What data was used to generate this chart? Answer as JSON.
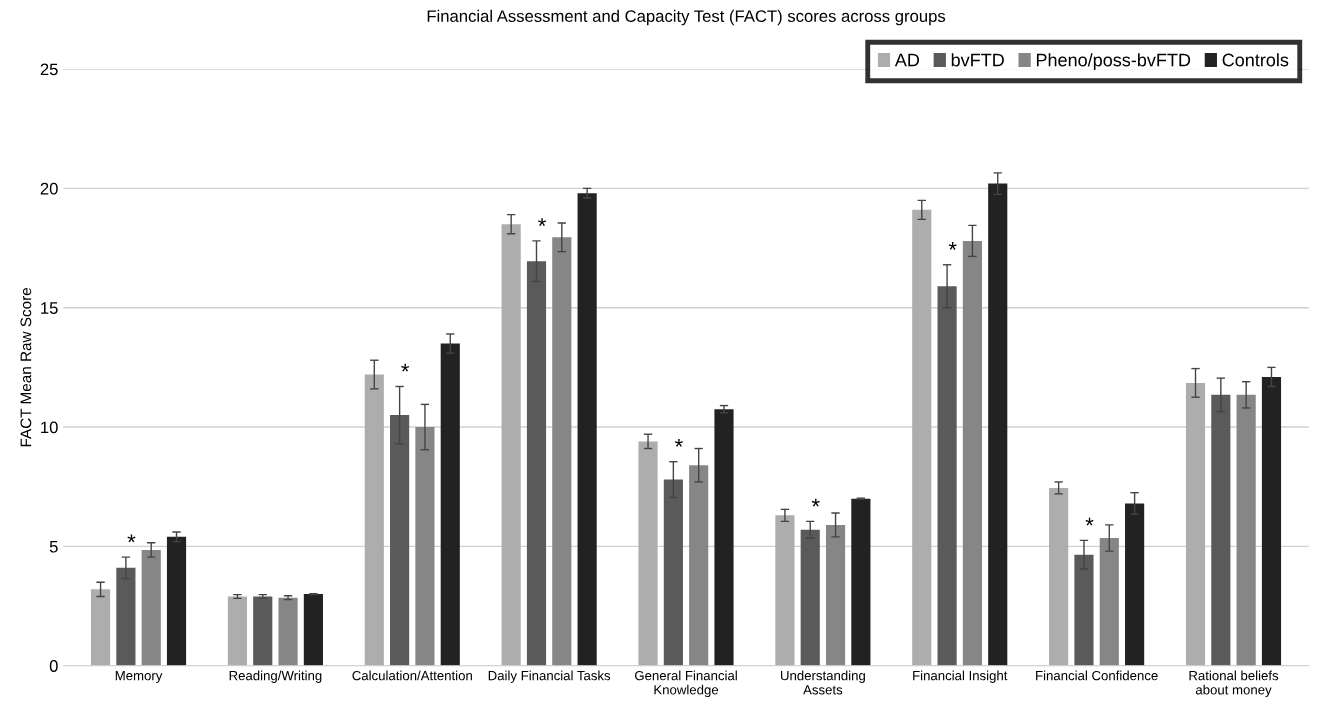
{
  "chart_data": {
    "type": "bar",
    "title": "Financial Assessment and Capacity Test (FACT) scores across groups",
    "ylabel": "FACT Mean Raw Score",
    "categories": [
      "Memory",
      "Reading/Writing",
      "Calculation/Attention",
      "Daily Financial Tasks",
      "General Financial\nKnowledge",
      "Understanding\nAssets",
      "Financial Insight",
      "Financial Confidence",
      "Rational beliefs\nabout money"
    ],
    "series": [
      {
        "name": "AD",
        "color": "#adadad",
        "values": [
          3.2,
          2.9,
          12.2,
          18.5,
          9.4,
          6.3,
          19.1,
          7.45,
          11.85
        ],
        "errors": [
          0.3,
          0.08,
          0.6,
          0.4,
          0.3,
          0.25,
          0.4,
          0.25,
          0.6
        ]
      },
      {
        "name": "bvFTD",
        "color": "#5a5a5a",
        "values": [
          4.1,
          2.9,
          10.5,
          16.95,
          7.8,
          5.7,
          15.9,
          4.65,
          11.35
        ],
        "errors": [
          0.45,
          0.08,
          1.2,
          0.85,
          0.75,
          0.35,
          0.9,
          0.6,
          0.7
        ],
        "value_labels": [
          "*",
          null,
          "*",
          "*",
          "*",
          "*",
          "*",
          "*",
          null
        ]
      },
      {
        "name": "Pheno/poss-bvFTD",
        "color": "#868686",
        "values": [
          4.85,
          2.85,
          10.0,
          17.95,
          8.4,
          5.9,
          17.8,
          5.35,
          11.35
        ],
        "errors": [
          0.3,
          0.08,
          0.95,
          0.6,
          0.7,
          0.5,
          0.65,
          0.55,
          0.55
        ]
      },
      {
        "name": "Controls",
        "color": "#222222",
        "values": [
          5.4,
          3.0,
          13.5,
          19.8,
          10.75,
          7.0,
          20.2,
          6.8,
          12.1
        ],
        "errors": [
          0.2,
          0.02,
          0.4,
          0.2,
          0.15,
          0.02,
          0.45,
          0.45,
          0.4
        ]
      }
    ],
    "ylim": [
      0,
      25
    ],
    "yticks": [
      0,
      5,
      10,
      15,
      20,
      25
    ],
    "grid": "y",
    "legend": "top right"
  }
}
